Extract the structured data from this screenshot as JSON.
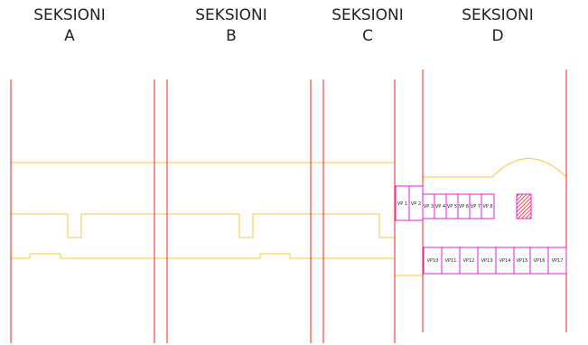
{
  "colors": {
    "section_line": "#ff2020",
    "outline": "#f5c842",
    "vp_box": "#e81cdb",
    "hatch": "#e0202a"
  },
  "sections": [
    {
      "title": "SEKSIONI",
      "letter": "A"
    },
    {
      "title": "SEKSIONI",
      "letter": "B"
    },
    {
      "title": "SEKSIONI",
      "letter": "C"
    },
    {
      "title": "SEKSIONI",
      "letter": "D"
    }
  ],
  "vp_upper": [
    "VP 1",
    "VP 2",
    "VP 3",
    "VP 4",
    "VP 5",
    "VP 6",
    "VP 7",
    "VP 8"
  ],
  "vp_lower": [
    "VP10",
    "VP11",
    "VP12",
    "VP13",
    "VP14",
    "VP15",
    "VP16",
    "VP17"
  ],
  "hatched_box_icon": "hatched-square"
}
